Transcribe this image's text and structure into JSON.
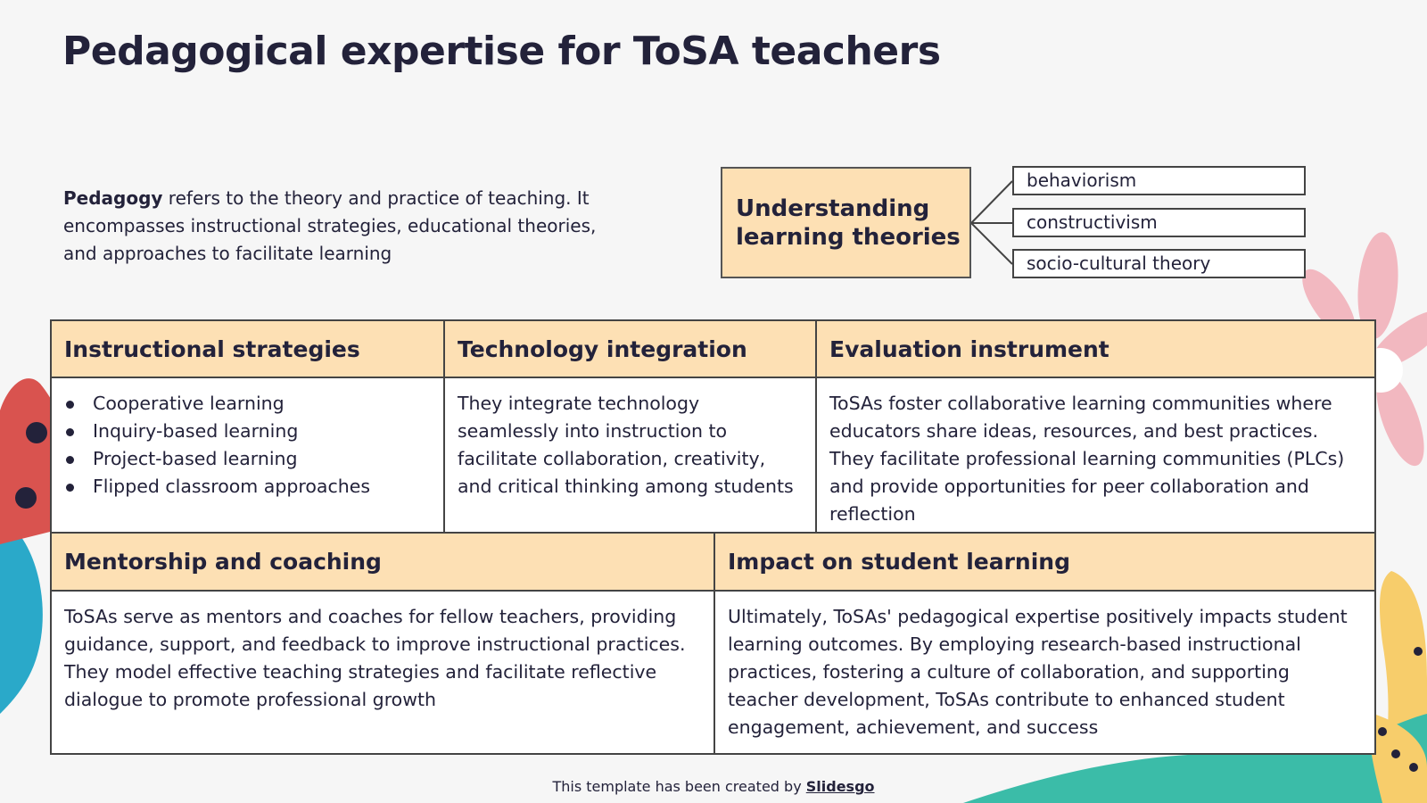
{
  "title": "Pedagogical expertise for ToSA teachers",
  "intro": {
    "term": "Pedagogy",
    "text": " refers to the theory and practice of teaching. It encompasses instructional strategies, educational theories, and approaches to facilitate learning"
  },
  "learning_theories": {
    "label": "Understanding learning theories",
    "items": [
      "behaviorism",
      "constructivism",
      "socio-cultural theory"
    ]
  },
  "table1": {
    "headers": [
      "Instructional strategies",
      "Technology integration",
      "Evaluation instrument"
    ],
    "bullets": [
      "Cooperative learning",
      "Inquiry-based learning",
      "Project-based learning",
      "Flipped classroom approaches"
    ],
    "technology": "They integrate technology seamlessly into instruction to facilitate collaboration, creativity, and critical thinking among students",
    "evaluation": "ToSAs foster collaborative learning communities where educators share ideas, resources, and best practices. They facilitate professional learning communities (PLCs) and provide opportunities for peer collaboration and reflection"
  },
  "table2": {
    "headers": [
      "Mentorship and coaching",
      "Impact on student learning"
    ],
    "mentorship": "ToSAs serve as mentors and coaches for fellow teachers, providing guidance, support, and feedback to improve instructional practices. They model effective teaching strategies and facilitate reflective dialogue to promote professional growth",
    "impact": "Ultimately, ToSAs' pedagogical expertise positively impacts student learning outcomes. By employing research-based instructional practices, fostering a culture of collaboration, and supporting teacher development, ToSAs contribute to enhanced student engagement, achievement, and success"
  },
  "footer": {
    "text": "This template has been created by ",
    "link": "Slidesgo"
  },
  "colors": {
    "header_fill": "#fde0b4",
    "text": "#23223a",
    "red": "#d9534f",
    "blue": "#2aa9c9",
    "teal": "#3bbca8",
    "yellow": "#f7cd6b",
    "pink": "#f2b8c0"
  }
}
